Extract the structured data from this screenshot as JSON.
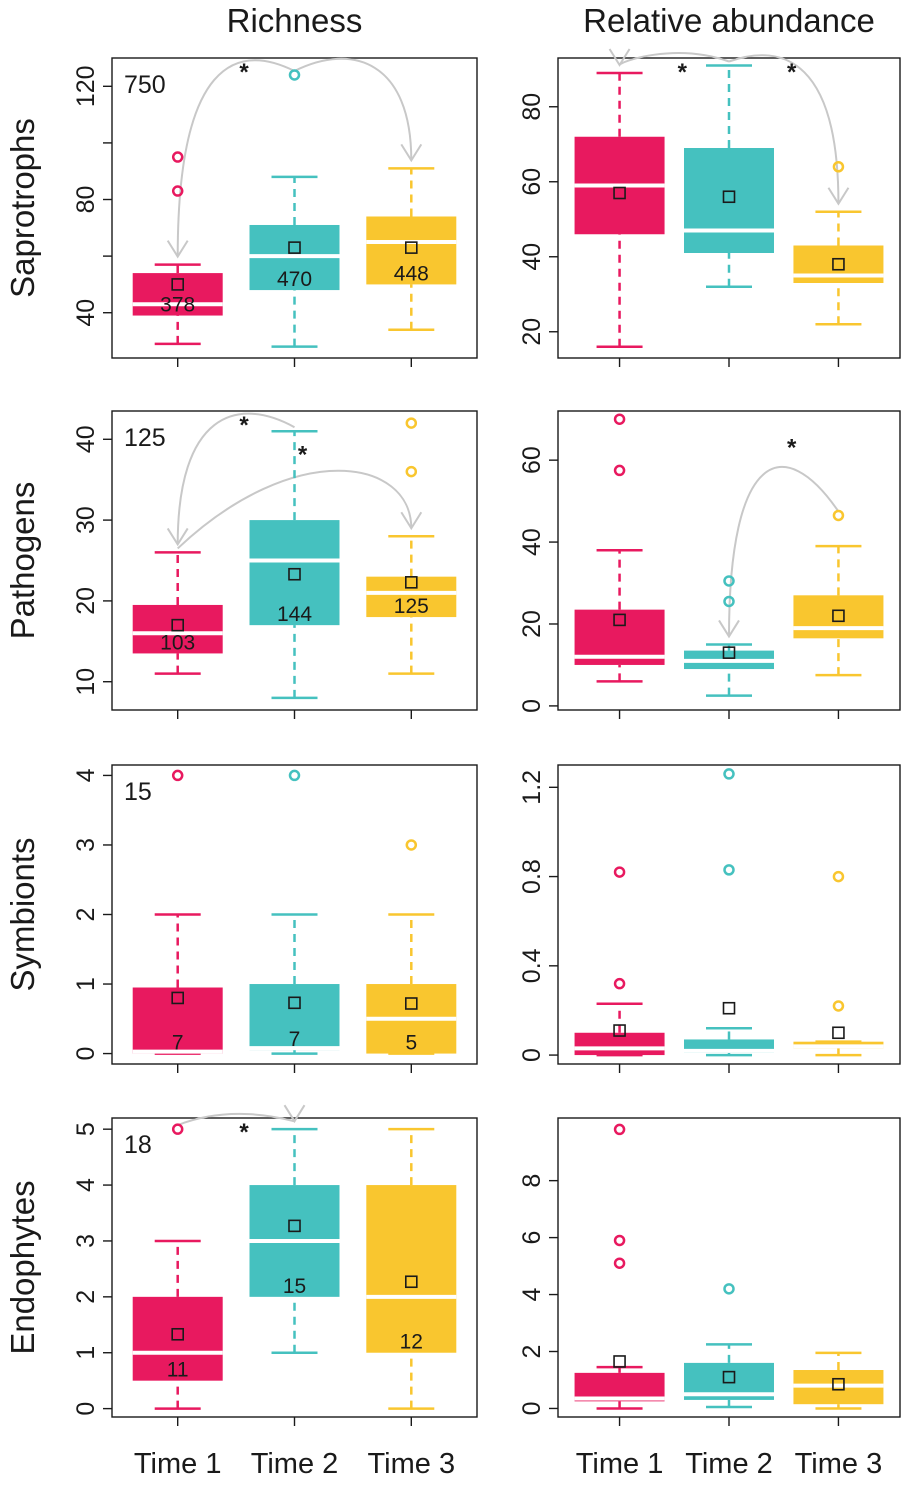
{
  "colors": {
    "Time 1": "#e8195f",
    "Time 2": "#45c1bf",
    "Time 3": "#f9c62f",
    "arrow": "#c8c8c8"
  },
  "columns": [
    "Richness",
    "Relative abundance"
  ],
  "rows": [
    "Saprotrophs",
    "Pathogens",
    "Symbionts",
    "Endophytes"
  ],
  "x_labels": [
    "Time 1",
    "Time 2",
    "Time 3"
  ],
  "chart_data": [
    {
      "type": "box",
      "row": "Saprotrophs",
      "column": "Richness",
      "total": "750",
      "ylim": [
        24,
        130
      ],
      "yticks": [
        40,
        80,
        120
      ],
      "minor_ticks": [
        60,
        100
      ],
      "boxes": [
        {
          "group": "Time 1",
          "whisker_low": 29,
          "q1": 39,
          "median": 43,
          "q3": 54,
          "whisker_high": 57,
          "mean": 50,
          "count": "378",
          "outliers": [
            83,
            95
          ]
        },
        {
          "group": "Time 2",
          "whisker_low": 28,
          "q1": 48,
          "median": 60,
          "q3": 71,
          "whisker_high": 88,
          "mean": 63,
          "count": "470",
          "outliers": [
            124
          ]
        },
        {
          "group": "Time 3",
          "whisker_low": 34,
          "q1": 50,
          "median": 65,
          "q3": 74,
          "whisker_high": 91,
          "mean": 63,
          "count": "448",
          "outliers": []
        }
      ],
      "arrows": [
        {
          "from": "Time 2",
          "to": "Time 1"
        },
        {
          "from": "Time 2",
          "to": "Time 3"
        }
      ],
      "stars": 1
    },
    {
      "type": "box",
      "row": "Saprotrophs",
      "column": "Relative abundance",
      "total": "",
      "ylim": [
        13,
        93
      ],
      "yticks": [
        20,
        40,
        60,
        80
      ],
      "minor_ticks": [],
      "boxes": [
        {
          "group": "Time 1",
          "whisker_low": 16,
          "q1": 46,
          "median": 59,
          "q3": 72,
          "whisker_high": 89,
          "mean": 57,
          "count": "",
          "outliers": []
        },
        {
          "group": "Time 2",
          "whisker_low": 32,
          "q1": 41,
          "median": 47,
          "q3": 69,
          "whisker_high": 91,
          "mean": 56,
          "count": "",
          "outliers": []
        },
        {
          "group": "Time 3",
          "whisker_low": 22,
          "q1": 33,
          "median": 35,
          "q3": 43,
          "whisker_high": 52,
          "mean": 38,
          "count": "",
          "outliers": [
            64
          ]
        }
      ],
      "arrows": [
        {
          "from": "Time 2",
          "to": "Time 1"
        },
        {
          "from": "Time 2",
          "to": "Time 3"
        }
      ],
      "stars": 2
    },
    {
      "type": "box",
      "row": "Pathogens",
      "column": "Richness",
      "total": "125",
      "ylim": [
        6.5,
        43.5
      ],
      "yticks": [
        10,
        20,
        30,
        40
      ],
      "minor_ticks": [],
      "boxes": [
        {
          "group": "Time 1",
          "whisker_low": 11,
          "q1": 13.5,
          "median": 16,
          "q3": 19.5,
          "whisker_high": 26,
          "mean": 17,
          "count": "103",
          "outliers": []
        },
        {
          "group": "Time 2",
          "whisker_low": 8,
          "q1": 17,
          "median": 25,
          "q3": 30,
          "whisker_high": 41,
          "mean": 23.3,
          "count": "144",
          "outliers": []
        },
        {
          "group": "Time 3",
          "whisker_low": 11,
          "q1": 18,
          "median": 21,
          "q3": 23,
          "whisker_high": 28,
          "mean": 22.3,
          "count": "125",
          "outliers": [
            36,
            42
          ]
        }
      ],
      "arrows": [
        {
          "from": "Time 2",
          "to": "Time 1"
        },
        {
          "from": "Time 1",
          "to": "Time 3"
        }
      ],
      "stars": 2
    },
    {
      "type": "box",
      "row": "Pathogens",
      "column": "Relative abundance",
      "total": "",
      "ylim": [
        -1,
        72
      ],
      "yticks": [
        0,
        20,
        40,
        60
      ],
      "minor_ticks": [],
      "boxes": [
        {
          "group": "Time 1",
          "whisker_low": 6,
          "q1": 10,
          "median": 12,
          "q3": 23.5,
          "whisker_high": 38,
          "mean": 21,
          "count": "",
          "outliers": [
            57.5,
            70
          ]
        },
        {
          "group": "Time 2",
          "whisker_low": 2.5,
          "q1": 9,
          "median": 11,
          "q3": 13.5,
          "whisker_high": 15,
          "mean": 13,
          "count": "",
          "outliers": [
            25.5,
            30.5
          ]
        },
        {
          "group": "Time 3",
          "whisker_low": 7.5,
          "q1": 16.5,
          "median": 19,
          "q3": 27,
          "whisker_high": 39,
          "mean": 22,
          "count": "",
          "outliers": [
            46.5
          ]
        }
      ],
      "arrows": [
        {
          "from": "Time 3",
          "to": "Time 2"
        }
      ],
      "stars": 1
    },
    {
      "type": "box",
      "row": "Symbionts",
      "column": "Richness",
      "total": "15",
      "ylim": [
        -0.15,
        4.15
      ],
      "yticks": [
        0,
        1,
        2,
        3,
        4
      ],
      "minor_ticks": [],
      "boxes": [
        {
          "group": "Time 1",
          "whisker_low": 0,
          "q1": 0,
          "median": 0,
          "q3": 0.95,
          "whisker_high": 2,
          "mean": 0.8,
          "count": "7",
          "outliers": [
            4
          ]
        },
        {
          "group": "Time 2",
          "whisker_low": 0,
          "q1": 0.05,
          "median": 0.05,
          "q3": 1,
          "whisker_high": 2,
          "mean": 0.73,
          "count": "7",
          "outliers": [
            4
          ]
        },
        {
          "group": "Time 3",
          "whisker_low": 0,
          "q1": 0,
          "median": 0.5,
          "q3": 1,
          "whisker_high": 2,
          "mean": 0.72,
          "count": "5",
          "outliers": [
            3
          ]
        }
      ],
      "arrows": [],
      "stars": 0
    },
    {
      "type": "box",
      "row": "Symbionts",
      "column": "Relative abundance",
      "total": "",
      "ylim": [
        -0.04,
        1.3
      ],
      "yticks": [
        0,
        0.4,
        0.8,
        1.2
      ],
      "minor_ticks": [],
      "boxes": [
        {
          "group": "Time 1",
          "whisker_low": 0,
          "q1": 0,
          "median": 0.03,
          "q3": 0.1,
          "whisker_high": 0.23,
          "mean": 0.11,
          "count": "",
          "outliers": [
            0.32,
            0.82
          ]
        },
        {
          "group": "Time 2",
          "whisker_low": 0,
          "q1": 0.01,
          "median": 0.01,
          "q3": 0.07,
          "whisker_high": 0.12,
          "mean": 0.21,
          "count": "",
          "outliers": [
            0.83,
            1.26
          ]
        },
        {
          "group": "Time 3",
          "whisker_low": 0,
          "q1": 0.03,
          "median": 0.03,
          "q3": 0.06,
          "whisker_high": 0.06,
          "mean": 0.1,
          "count": "",
          "outliers": [
            0.22,
            0.8
          ]
        }
      ],
      "arrows": [],
      "stars": 0
    },
    {
      "type": "box",
      "row": "Endophytes",
      "column": "Richness",
      "total": "18",
      "ylim": [
        -0.15,
        5.2
      ],
      "yticks": [
        0,
        1,
        2,
        3,
        4,
        5
      ],
      "minor_ticks": [],
      "boxes": [
        {
          "group": "Time 1",
          "whisker_low": 0,
          "q1": 0.5,
          "median": 1,
          "q3": 2,
          "whisker_high": 3,
          "mean": 1.33,
          "count": "11",
          "outliers": [
            5
          ]
        },
        {
          "group": "Time 2",
          "whisker_low": 1,
          "q1": 2,
          "median": 3,
          "q3": 4,
          "whisker_high": 5,
          "mean": 3.27,
          "count": "15",
          "outliers": []
        },
        {
          "group": "Time 3",
          "whisker_low": 0,
          "q1": 1,
          "median": 2,
          "q3": 4,
          "whisker_high": 5,
          "mean": 2.27,
          "count": "12",
          "outliers": []
        }
      ],
      "arrows": [
        {
          "from": "Time 1",
          "to": "Time 2"
        }
      ],
      "stars": 1
    },
    {
      "type": "box",
      "row": "Endophytes",
      "column": "Relative abundance",
      "total": "",
      "ylim": [
        -0.3,
        10.2
      ],
      "yticks": [
        0,
        2,
        4,
        6,
        8
      ],
      "minor_ticks": [],
      "boxes": [
        {
          "group": "Time 1",
          "whisker_low": 0,
          "q1": 0.25,
          "median": 0.35,
          "q3": 1.25,
          "whisker_high": 1.45,
          "mean": 1.65,
          "count": "",
          "outliers": [
            5.1,
            5.9,
            9.8
          ]
        },
        {
          "group": "Time 2",
          "whisker_low": 0.05,
          "q1": 0.3,
          "median": 0.5,
          "q3": 1.6,
          "whisker_high": 2.25,
          "mean": 1.1,
          "count": "",
          "outliers": [
            4.2
          ]
        },
        {
          "group": "Time 3",
          "whisker_low": 0,
          "q1": 0.15,
          "median": 0.8,
          "q3": 1.35,
          "whisker_high": 1.95,
          "mean": 0.85,
          "count": "",
          "outliers": []
        }
      ],
      "arrows": [],
      "stars": 0
    }
  ]
}
